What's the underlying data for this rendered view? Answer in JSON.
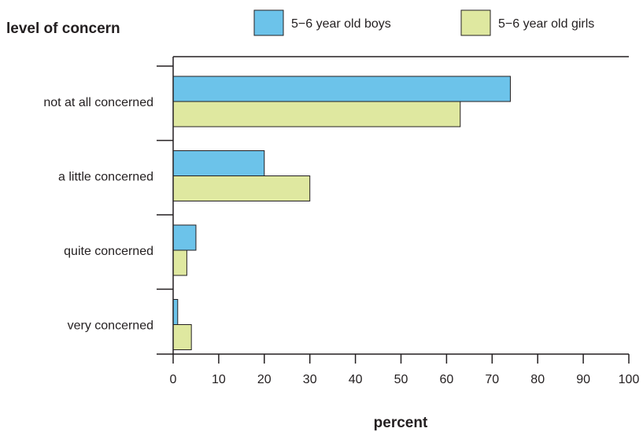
{
  "chart_data": {
    "type": "bar",
    "orientation": "horizontal",
    "ylabel": "level of concern",
    "xlabel": "percent",
    "categories": [
      "not at all concerned",
      "a little concerned",
      "quite concerned",
      "very concerned"
    ],
    "series": [
      {
        "name": "5−6 year old boys",
        "values": [
          74,
          20,
          5,
          1
        ],
        "color": "#6cc3ea"
      },
      {
        "name": "5−6 year old girls",
        "values": [
          63,
          30,
          3,
          4
        ],
        "color": "#dfe8a0"
      }
    ],
    "xlim": [
      0,
      100
    ],
    "xticks": [
      0,
      10,
      20,
      30,
      40,
      50,
      60,
      70,
      80,
      90,
      100
    ],
    "grid": false,
    "legend_position": "top-right",
    "axis_color": "#231f20"
  }
}
